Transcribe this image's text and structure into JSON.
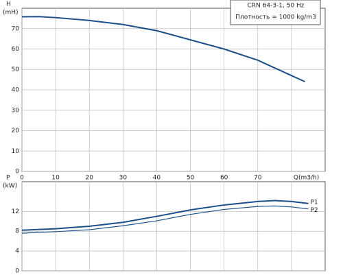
{
  "chart_data": [
    {
      "type": "line",
      "title": "CRN 64-3-1, 50 Hz",
      "subtitle": "Плотность = 1000 kg/m3",
      "ylabel": [
        "H",
        "(mH)"
      ],
      "xlim": [
        0,
        90
      ],
      "ylim": [
        0,
        80
      ],
      "xticks": [
        0,
        10,
        20,
        30,
        40,
        50,
        60,
        70,
        {
          "value": 80,
          "label": "Q(m3/h)"
        }
      ],
      "yticks": [
        0,
        10,
        20,
        30,
        40,
        50,
        60,
        70
      ],
      "show_xtick_labels": true,
      "grid": true,
      "x": [
        0,
        5,
        10,
        20,
        30,
        40,
        50,
        60,
        70,
        80,
        84
      ],
      "series": [
        {
          "name": "H",
          "color": "#1b4f8a",
          "values": [
            75.8,
            75.9,
            75.4,
            74,
            72,
            69,
            64.5,
            60,
            54.5,
            47,
            44
          ]
        }
      ]
    },
    {
      "type": "line",
      "ylabel": [
        "P",
        "(kW)"
      ],
      "xlim": [
        0,
        90
      ],
      "ylim": [
        0,
        18
      ],
      "xticks": [
        0,
        10,
        20,
        30,
        40,
        50,
        60,
        70,
        80
      ],
      "yticks": [
        0,
        4,
        8,
        12
      ],
      "show_xtick_labels": false,
      "grid": true,
      "x": [
        0,
        10,
        20,
        30,
        40,
        50,
        60,
        70,
        75,
        80,
        85
      ],
      "series": [
        {
          "name": "P1",
          "color": "#1b4f8a",
          "values": [
            8.2,
            8.5,
            9,
            9.8,
            11,
            12.3,
            13.3,
            14,
            14.2,
            14,
            13.6
          ]
        },
        {
          "name": "P2",
          "color": "#1b4f8a",
          "values": [
            7.6,
            7.9,
            8.3,
            9.1,
            10.1,
            11.4,
            12.4,
            13,
            13.1,
            12.9,
            12.5
          ]
        }
      ]
    }
  ]
}
